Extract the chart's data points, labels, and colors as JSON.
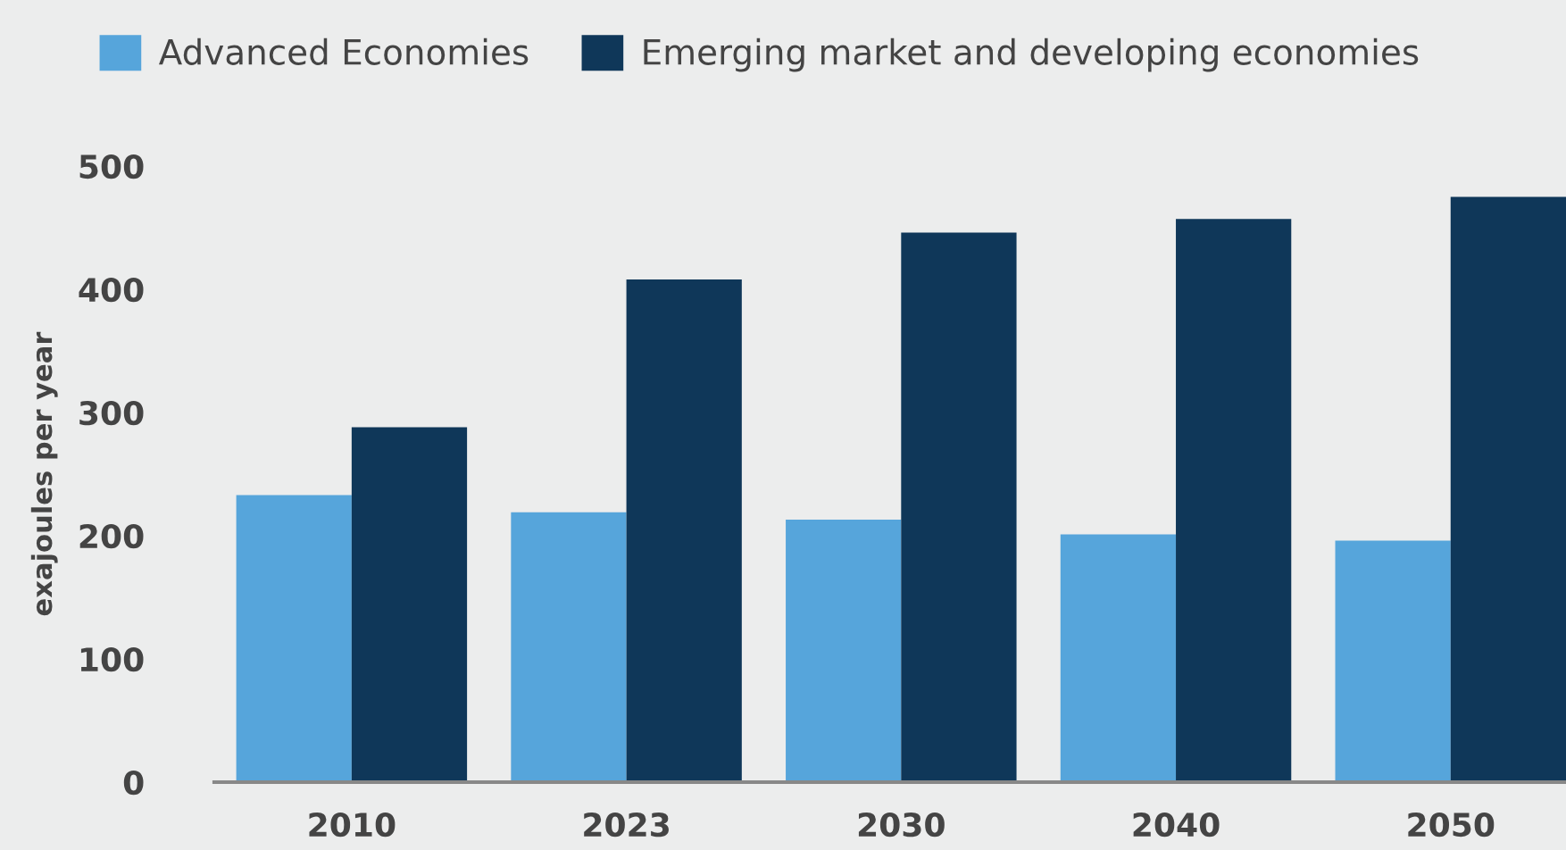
{
  "chart_data": {
    "type": "bar",
    "ylabel": "exajoules per year",
    "categories": [
      "2010",
      "2023",
      "2030",
      "2040",
      "2050"
    ],
    "series": [
      {
        "name": "Advanced Economies",
        "color": "#56a5db",
        "values": [
          233,
          219,
          213,
          201,
          196
        ]
      },
      {
        "name": "Emerging market and developing economies",
        "color": "#0f3759",
        "values": [
          288,
          408,
          446,
          457,
          475
        ]
      }
    ],
    "ylim": [
      0,
      500
    ],
    "yticks": [
      0,
      100,
      200,
      300,
      400,
      500
    ],
    "grid": false,
    "legend": "top left"
  }
}
